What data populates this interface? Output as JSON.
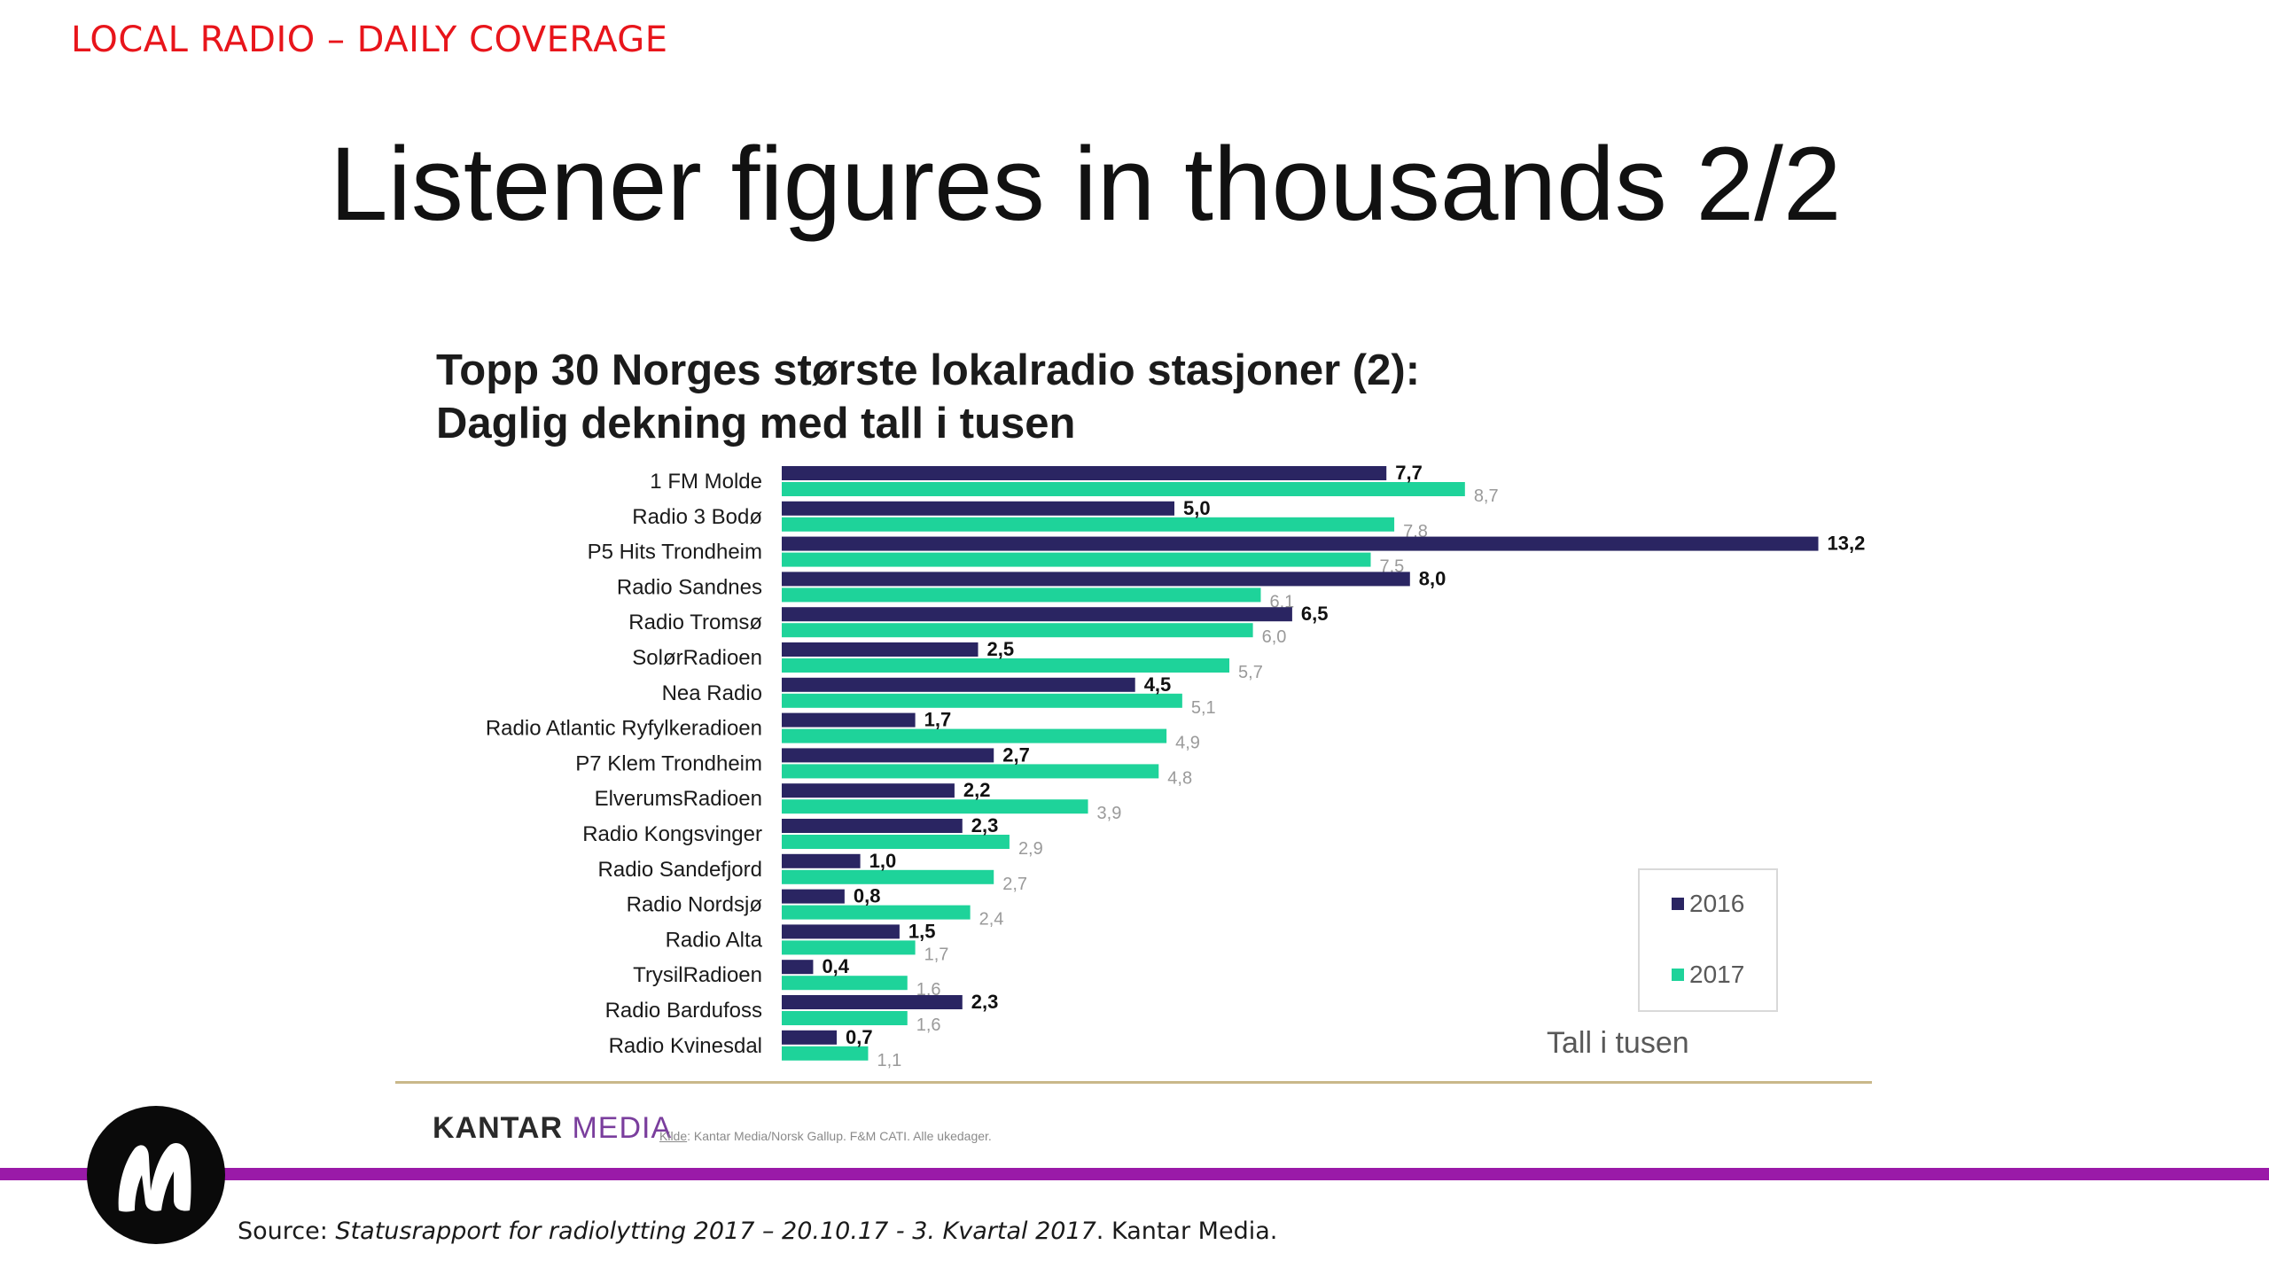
{
  "header": {
    "section_label": "LOCAL RADIO – DAILY COVERAGE",
    "title": "Listener figures in thousands 2/2"
  },
  "chart_data": {
    "type": "bar",
    "orientation": "horizontal",
    "title_line1": "Topp 30 Norges største lokalradio stasjoner (2):",
    "title_line2": "Daglig dekning med tall i tusen",
    "categories": [
      "1 FM Molde",
      "Radio 3 Bodø",
      "P5 Hits Trondheim",
      "Radio Sandnes",
      "Radio Tromsø",
      "SolørRadioen",
      "Nea Radio",
      "Radio Atlantic Ryfylkeradioen",
      "P7 Klem Trondheim",
      "ElverumsRadioen",
      "Radio Kongsvinger",
      "Radio Sandefjord",
      "Radio Nordsjø",
      "Radio Alta",
      "TrysilRadioen",
      "Radio Bardufoss",
      "Radio Kvinesdal"
    ],
    "series": [
      {
        "name": "2016",
        "color": "#2a2562",
        "values": [
          7.7,
          5.0,
          13.2,
          8.0,
          6.5,
          2.5,
          4.5,
          1.7,
          2.7,
          2.2,
          2.3,
          1.0,
          0.8,
          1.5,
          0.4,
          2.3,
          0.7
        ],
        "labels": [
          "7,7",
          "5,0",
          "13,2",
          "8,0",
          "6,5",
          "2,5",
          "4,5",
          "1,7",
          "2,7",
          "2,2",
          "2,3",
          "1,0",
          "0,8",
          "1,5",
          "0,4",
          "2,3",
          "0,7"
        ]
      },
      {
        "name": "2017",
        "color": "#1ed39a",
        "values": [
          8.7,
          7.8,
          7.5,
          6.1,
          6.0,
          5.7,
          5.1,
          4.9,
          4.8,
          3.9,
          2.9,
          2.7,
          2.4,
          1.7,
          1.6,
          1.6,
          1.1
        ],
        "labels": [
          "8,7",
          "7,8",
          "7,5",
          "6,1",
          "6,0",
          "5,7",
          "5,1",
          "4,9",
          "4,8",
          "3,9",
          "2,9",
          "2,7",
          "2,4",
          "1,7",
          "1,6",
          "1,6",
          "1,1"
        ]
      }
    ],
    "legend": {
      "position": "bottom-right",
      "items": [
        "2016",
        "2017"
      ]
    },
    "unit_note": "Tall i tusen"
  },
  "footer": {
    "kantar_part1": "KANTAR",
    "kantar_part2": "MEDIA",
    "kilde_label": "Kilde",
    "kilde_text": ": Kantar Media/Norsk Gallup. F&M CATI. Alle ukedager.",
    "source_prefix": "Source: ",
    "source_title": "Statusrapport for radiolytting 2017 – 20.10.17 - 3. Kvartal 2017",
    "source_suffix": ". Kantar Media."
  }
}
